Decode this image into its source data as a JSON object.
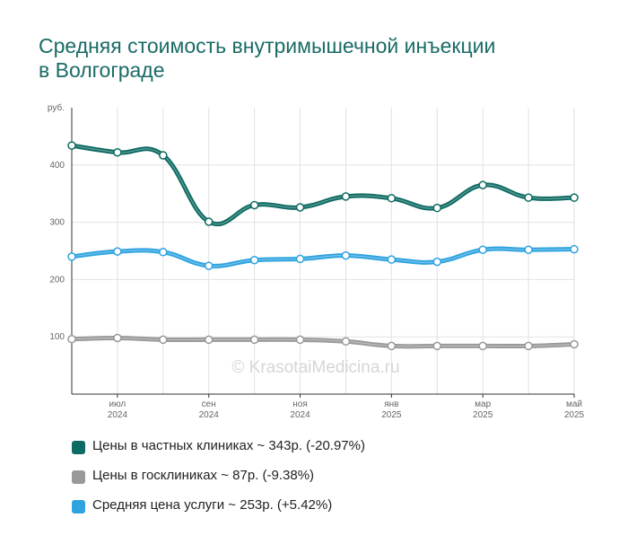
{
  "title_lines": [
    "Средняя стоимость внутримышечной инъекции",
    "в Волгограде"
  ],
  "watermark": "© KrasotaiMedicina.ru",
  "chart_data": {
    "type": "line",
    "ylabel": "руб.",
    "ylim": [
      0,
      500
    ],
    "yticks": [
      100,
      200,
      300,
      400
    ],
    "grid": true,
    "x_tick_labels": [
      {
        "month": "июл",
        "year": "2024"
      },
      {
        "month": "сен",
        "year": "2024"
      },
      {
        "month": "ноя",
        "year": "2024"
      },
      {
        "month": "янв",
        "year": "2025"
      },
      {
        "month": "мар",
        "year": "2025"
      },
      {
        "month": "май",
        "year": "2025"
      }
    ],
    "x_months": [
      "2024-06",
      "2024-07",
      "2024-08",
      "2024-09",
      "2024-10",
      "2024-11",
      "2024-12",
      "2025-01",
      "2025-02",
      "2025-03",
      "2025-04",
      "2025-05"
    ],
    "series": [
      {
        "name": "Цены в частных клиниках",
        "color": "#0e6b63",
        "values": [
          434,
          422,
          417,
          301,
          330,
          326,
          345,
          342,
          325,
          365,
          343,
          343
        ]
      },
      {
        "name": "Цены в госклиниках",
        "color": "#999999",
        "values": [
          96,
          98,
          95,
          95,
          95,
          95,
          92,
          84,
          84,
          84,
          84,
          87
        ]
      },
      {
        "name": "Средняя цена услуги",
        "color": "#2ea3e0",
        "values": [
          240,
          249,
          248,
          224,
          234,
          236,
          242,
          235,
          231,
          252,
          252,
          253
        ]
      }
    ]
  },
  "legend": [
    {
      "label": "Цены в частных клиниках ~ 343р. (-20.97%)",
      "color": "#0e6b63"
    },
    {
      "label": "Цены в госклиниках ~ 87р. (-9.38%)",
      "color": "#999999"
    },
    {
      "label": "Средняя цена услуги ~ 253р. (+5.42%)",
      "color": "#2ea3e0"
    }
  ]
}
